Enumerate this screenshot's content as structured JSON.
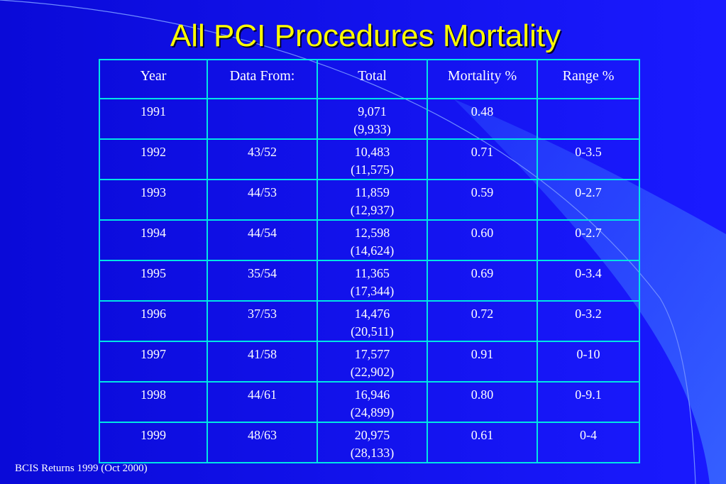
{
  "slide": {
    "title": "All PCI Procedures Mortality",
    "footer": "BCIS Returns 1999 (Oct 2000)"
  },
  "table": {
    "headers": [
      "Year",
      "Data From:",
      "Total",
      "Mortality %",
      "Range %"
    ],
    "rows": [
      {
        "year": "1991",
        "data_from": "",
        "total": "9,071",
        "total_paren": "(9,933)",
        "mortality": "0.48",
        "range": ""
      },
      {
        "year": "1992",
        "data_from": "43/52",
        "total": "10,483",
        "total_paren": "(11,575)",
        "mortality": "0.71",
        "range": "0-3.5"
      },
      {
        "year": "1993",
        "data_from": "44/53",
        "total": "11,859",
        "total_paren": "(12,937)",
        "mortality": "0.59",
        "range": "0-2.7"
      },
      {
        "year": "1994",
        "data_from": "44/54",
        "total": "12,598",
        "total_paren": "(14,624)",
        "mortality": "0.60",
        "range": "0-2.7"
      },
      {
        "year": "1995",
        "data_from": "35/54",
        "total": "11,365",
        "total_paren": "(17,344)",
        "mortality": "0.69",
        "range": "0-3.4"
      },
      {
        "year": "1996",
        "data_from": "37/53",
        "total": "14,476",
        "total_paren": "(20,511)",
        "mortality": "0.72",
        "range": "0-3.2"
      },
      {
        "year": "1997",
        "data_from": "41/58",
        "total": "17,577",
        "total_paren": "(22,902)",
        "mortality": "0.91",
        "range": "0-10"
      },
      {
        "year": "1998",
        "data_from": "44/61",
        "total": "16,946",
        "total_paren": "(24,899)",
        "mortality": "0.80",
        "range": "0-9.1"
      },
      {
        "year": "1999",
        "data_from": "48/63",
        "total": "20,975",
        "total_paren": "(28,133)",
        "mortality": "0.61",
        "range": "0-4"
      }
    ]
  },
  "colors": {
    "background": "#1010ee",
    "title": "#ffff00",
    "grid": "#00e5e5",
    "text": "#ffffff"
  }
}
